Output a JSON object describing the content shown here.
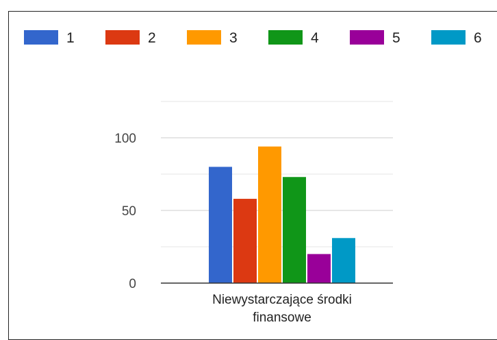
{
  "chart_data": {
    "type": "bar",
    "categories": [
      "Niewystarczające środki finansowe"
    ],
    "category_label_lines": [
      "Niewystarczające środki",
      "finansowe"
    ],
    "series": [
      {
        "name": "1",
        "values": [
          80
        ],
        "color": "#3366cc"
      },
      {
        "name": "2",
        "values": [
          58
        ],
        "color": "#dc3912"
      },
      {
        "name": "3",
        "values": [
          94
        ],
        "color": "#ff9900"
      },
      {
        "name": "4",
        "values": [
          73
        ],
        "color": "#109618"
      },
      {
        "name": "5",
        "values": [
          20
        ],
        "color": "#990099"
      },
      {
        "name": "6",
        "values": [
          31
        ],
        "color": "#0099c6"
      }
    ],
    "yticks": [
      0,
      50,
      100
    ],
    "ylim": [
      0,
      125
    ],
    "gridlines": [
      25,
      50,
      75,
      100,
      125
    ],
    "grid": true,
    "legend": "top",
    "title": "",
    "xlabel": "",
    "ylabel": ""
  }
}
